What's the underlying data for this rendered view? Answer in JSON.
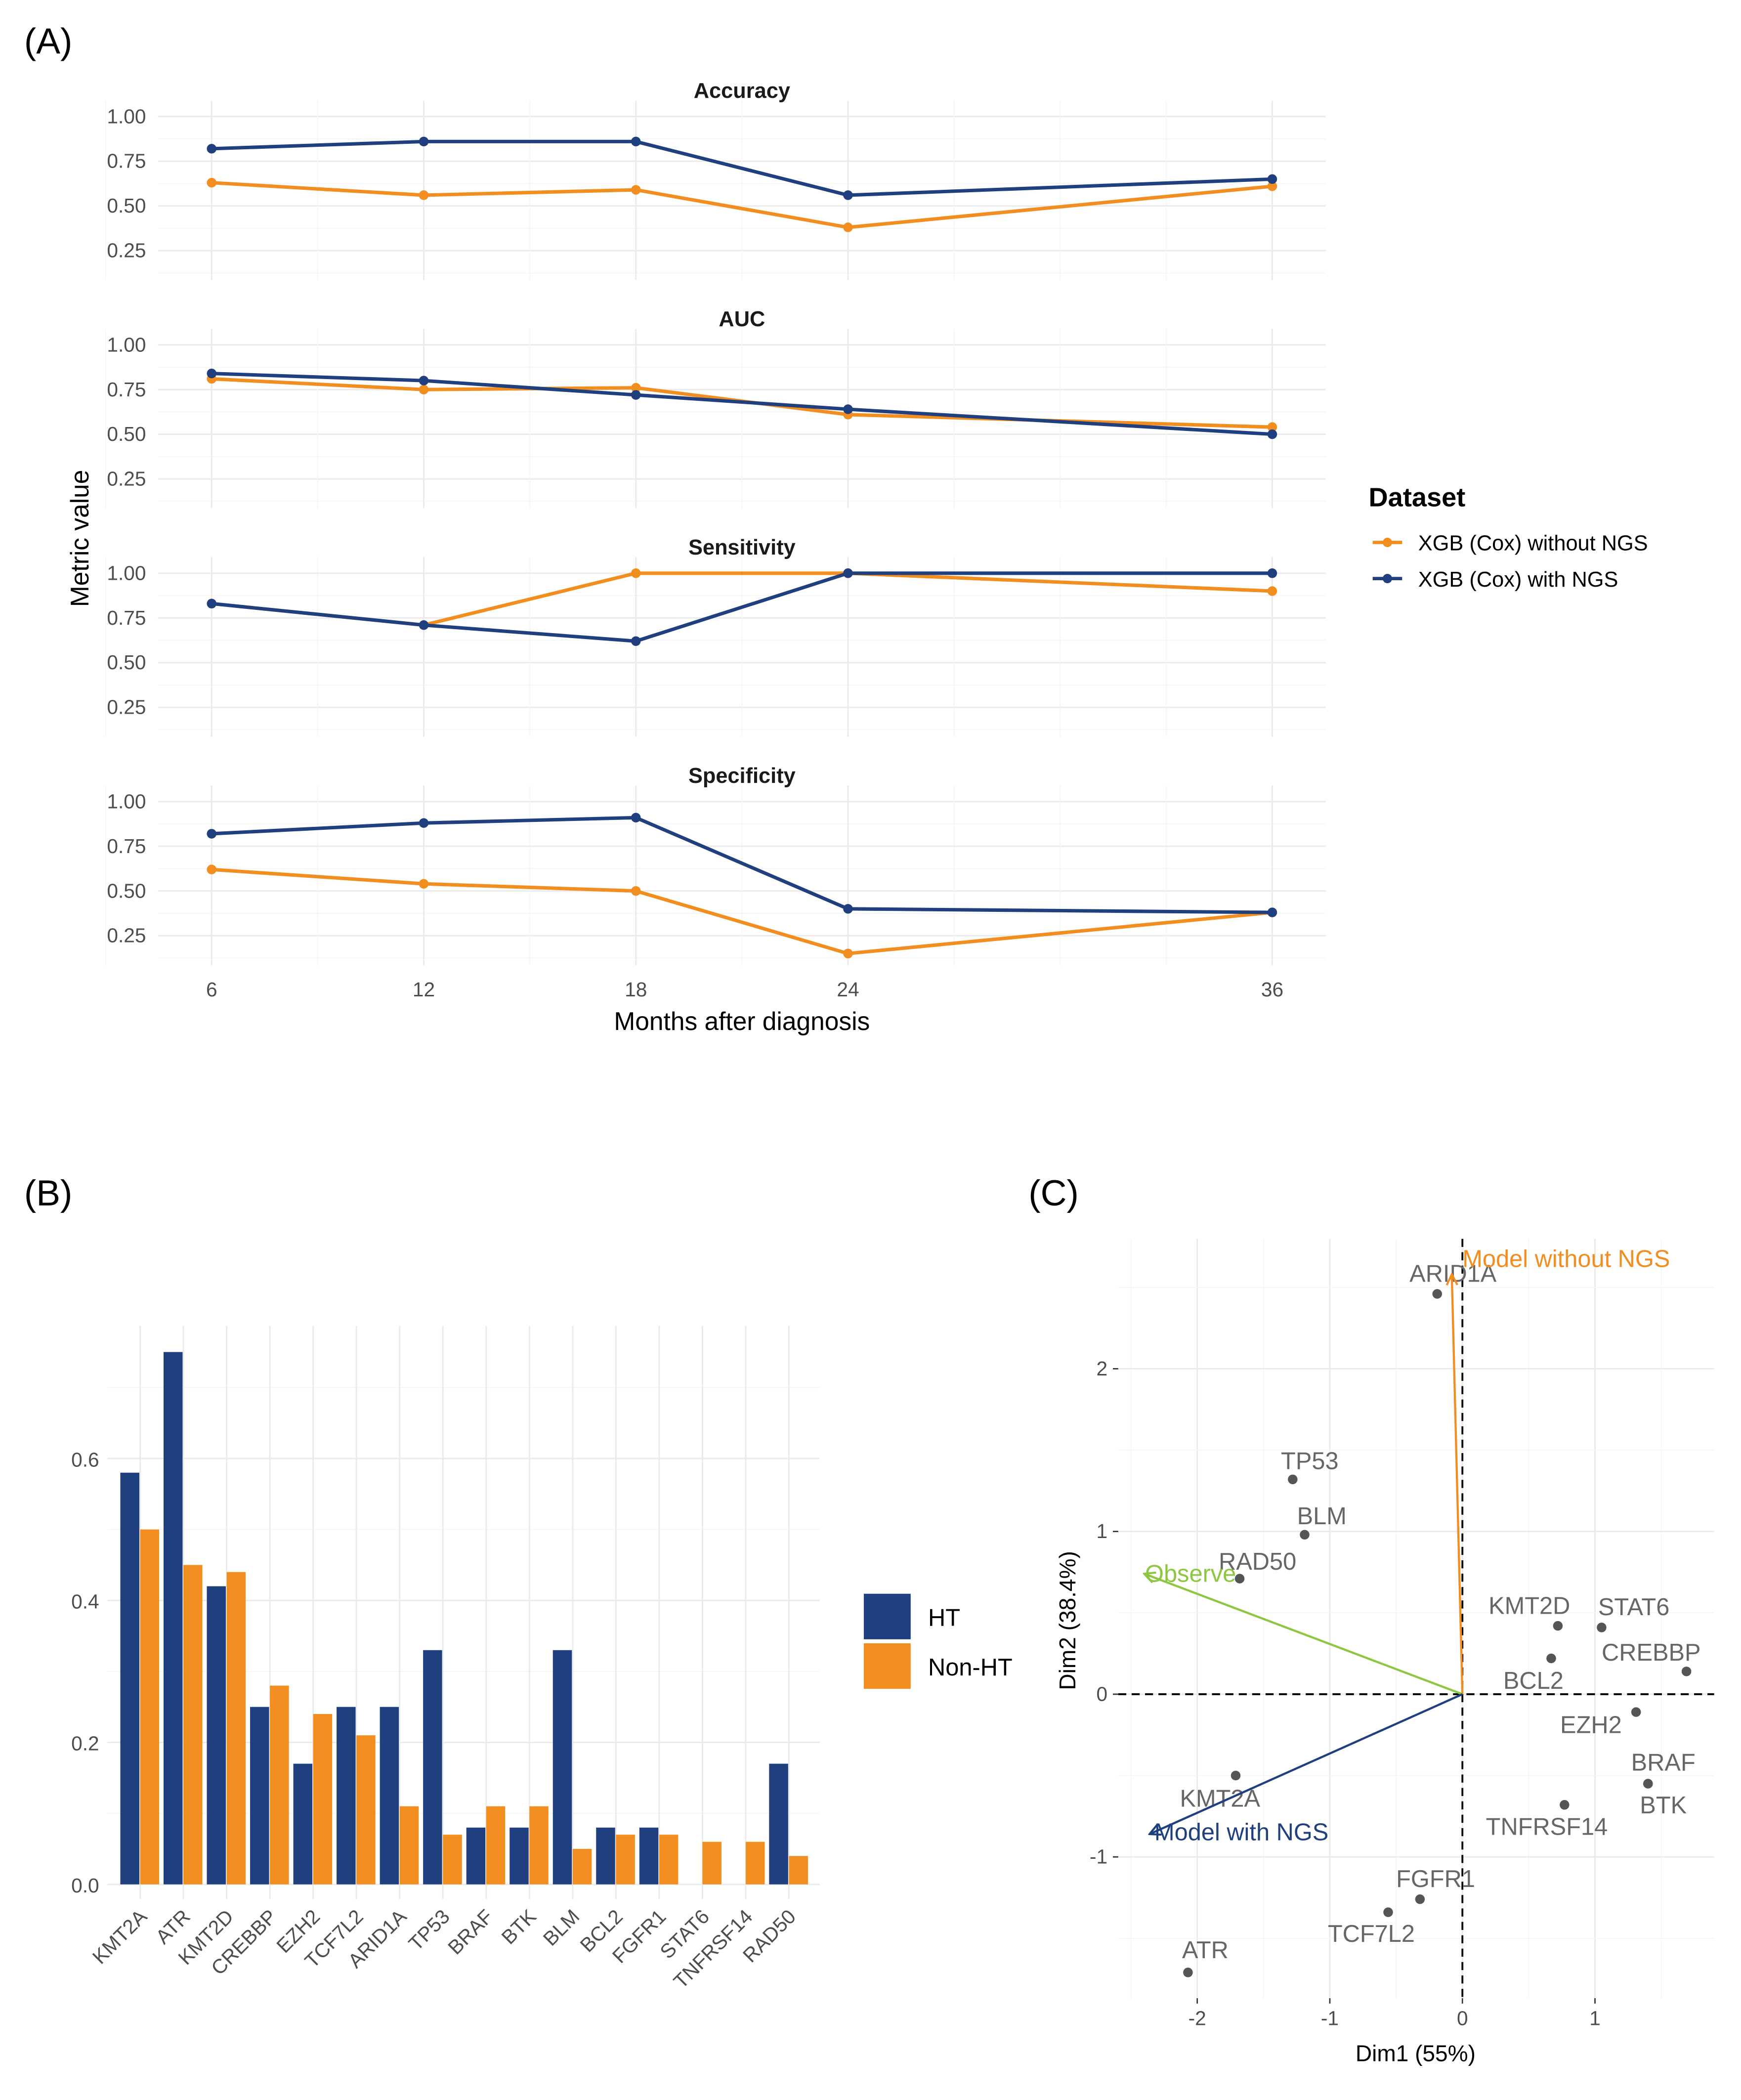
{
  "chart_data": [
    {
      "panel_label": "(A)",
      "type": "line",
      "facets": [
        "Accuracy",
        "AUC",
        "Sensitivity",
        "Specificity"
      ],
      "x": [
        6,
        12,
        18,
        24,
        36
      ],
      "xlabel": "Months after diagnosis",
      "ylabel": "Metric value",
      "yticks": [
        "0.25",
        "0.50",
        "0.75",
        "1.00"
      ],
      "xticks": [
        "6",
        "12",
        "18",
        "24",
        "36"
      ],
      "legend": {
        "title": "Dataset",
        "position": "right"
      },
      "series": [
        {
          "name": "XGB (Cox) without NGS",
          "color": "#F28E1F",
          "values": {
            "Accuracy": [
              0.63,
              0.56,
              0.59,
              0.38,
              0.61
            ],
            "AUC": [
              0.81,
              0.75,
              0.76,
              0.61,
              0.54
            ],
            "Sensitivity": [
              0.83,
              0.71,
              1.0,
              1.0,
              0.9
            ],
            "Specificity": [
              0.62,
              0.54,
              0.5,
              0.15,
              0.38
            ]
          }
        },
        {
          "name": "XGB (Cox) with NGS",
          "color": "#1F3F7F",
          "values": {
            "Accuracy": [
              0.82,
              0.86,
              0.86,
              0.56,
              0.65
            ],
            "AUC": [
              0.84,
              0.8,
              0.72,
              0.64,
              0.5
            ],
            "Sensitivity": [
              0.83,
              0.71,
              0.62,
              1.0,
              1.0
            ],
            "Specificity": [
              0.82,
              0.88,
              0.91,
              0.4,
              0.38
            ]
          }
        }
      ],
      "grid": true
    },
    {
      "panel_label": "(B)",
      "type": "bar",
      "categories": [
        "KMT2A",
        "ATR",
        "KMT2D",
        "CREBBP",
        "EZH2",
        "TCF7L2",
        "ARID1A",
        "TP53",
        "BRAF",
        "BTK",
        "BLM",
        "BCL2",
        "FGFR1",
        "STAT6",
        "TNFRSF14",
        "RAD50"
      ],
      "series": [
        {
          "name": "HT",
          "color": "#1F3F7F",
          "values": [
            0.58,
            0.75,
            0.42,
            0.25,
            0.17,
            0.25,
            0.25,
            0.33,
            0.08,
            0.08,
            0.33,
            0.08,
            0.08,
            0,
            0,
            0.17
          ]
        },
        {
          "name": "Non-HT",
          "color": "#F28E1F",
          "values": [
            0.5,
            0.45,
            0.44,
            0.28,
            0.24,
            0.21,
            0.11,
            0.07,
            0.11,
            0.11,
            0.05,
            0.07,
            0.07,
            0.06,
            0.06,
            0.04
          ]
        }
      ],
      "yticks": [
        "0.0",
        "0.2",
        "0.4",
        "0.6"
      ],
      "ylim": [
        0,
        0.78
      ],
      "legend": {
        "position": "right"
      },
      "grid": true
    },
    {
      "panel_label": "(C)",
      "type": "scatter",
      "xlabel": "Dim1 (55%)",
      "ylabel": "Dim2 (38.4%)",
      "xticks": [
        "-2",
        "-1",
        "0",
        "1"
      ],
      "yticks": [
        "-1",
        "0",
        "1",
        "2"
      ],
      "xlim": [
        -2.6,
        1.9
      ],
      "ylim": [
        -1.9,
        2.8
      ],
      "points": [
        {
          "label": "ARID1A",
          "x": -0.19,
          "y": 2.46
        },
        {
          "label": "TP53",
          "x": -1.28,
          "y": 1.32
        },
        {
          "label": "BLM",
          "x": -1.19,
          "y": 0.98
        },
        {
          "label": "RAD50",
          "x": -1.68,
          "y": 0.71
        },
        {
          "label": "KMT2D",
          "x": 0.72,
          "y": 0.42
        },
        {
          "label": "STAT6",
          "x": 1.05,
          "y": 0.41
        },
        {
          "label": "CREBBP",
          "x": 1.69,
          "y": 0.14
        },
        {
          "label": "BCL2",
          "x": 0.67,
          "y": 0.22
        },
        {
          "label": "EZH2",
          "x": 1.31,
          "y": -0.11
        },
        {
          "label": "BRAF",
          "x": 1.4,
          "y": -0.55
        },
        {
          "label": "BTK",
          "x": 1.4,
          "y": -0.55
        },
        {
          "label": "TNFRSF14",
          "x": 0.77,
          "y": -0.68
        },
        {
          "label": "KMT2A",
          "x": -1.71,
          "y": -0.5
        },
        {
          "label": "FGFR1",
          "x": -0.32,
          "y": -1.26
        },
        {
          "label": "TCF7L2",
          "x": -0.56,
          "y": -1.34
        },
        {
          "label": "ATR",
          "x": -2.07,
          "y": -1.71
        }
      ],
      "arrows": [
        {
          "label": "Model without NGS",
          "x": -0.08,
          "y": 2.58,
          "color": "#F28E1F"
        },
        {
          "label": "Observe",
          "x": -2.4,
          "y": 0.74,
          "color": "#8DC63F"
        },
        {
          "label": "Model with NGS",
          "x": -2.36,
          "y": -0.86,
          "color": "#1F3F7F"
        }
      ],
      "grid": true
    }
  ]
}
